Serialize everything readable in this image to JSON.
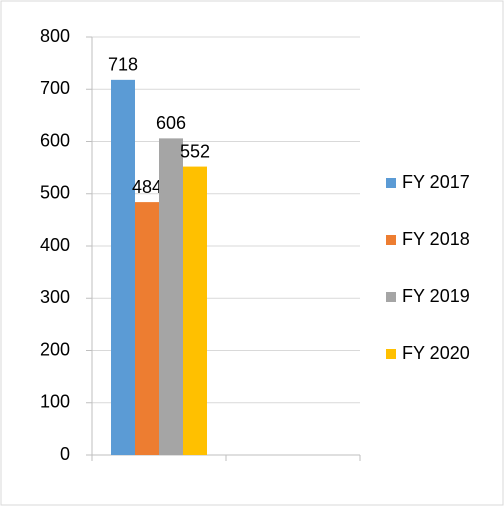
{
  "chart_data": {
    "type": "bar",
    "categories": [
      null,
      null
    ],
    "series": [
      {
        "name": "FY 2017",
        "color": "#5b9bd5",
        "values": [
          718,
          null
        ]
      },
      {
        "name": "FY 2018",
        "color": "#ed7d31",
        "values": [
          484,
          null
        ]
      },
      {
        "name": "FY 2019",
        "color": "#a5a5a5",
        "values": [
          606,
          null
        ]
      },
      {
        "name": "FY 2020",
        "color": "#ffc000",
        "values": [
          552,
          null
        ]
      }
    ],
    "ylim": [
      0,
      800
    ],
    "yticks": [
      0,
      100,
      200,
      300,
      400,
      500,
      600,
      700,
      800
    ],
    "grid": true,
    "legend": "right",
    "data_labels": true
  }
}
